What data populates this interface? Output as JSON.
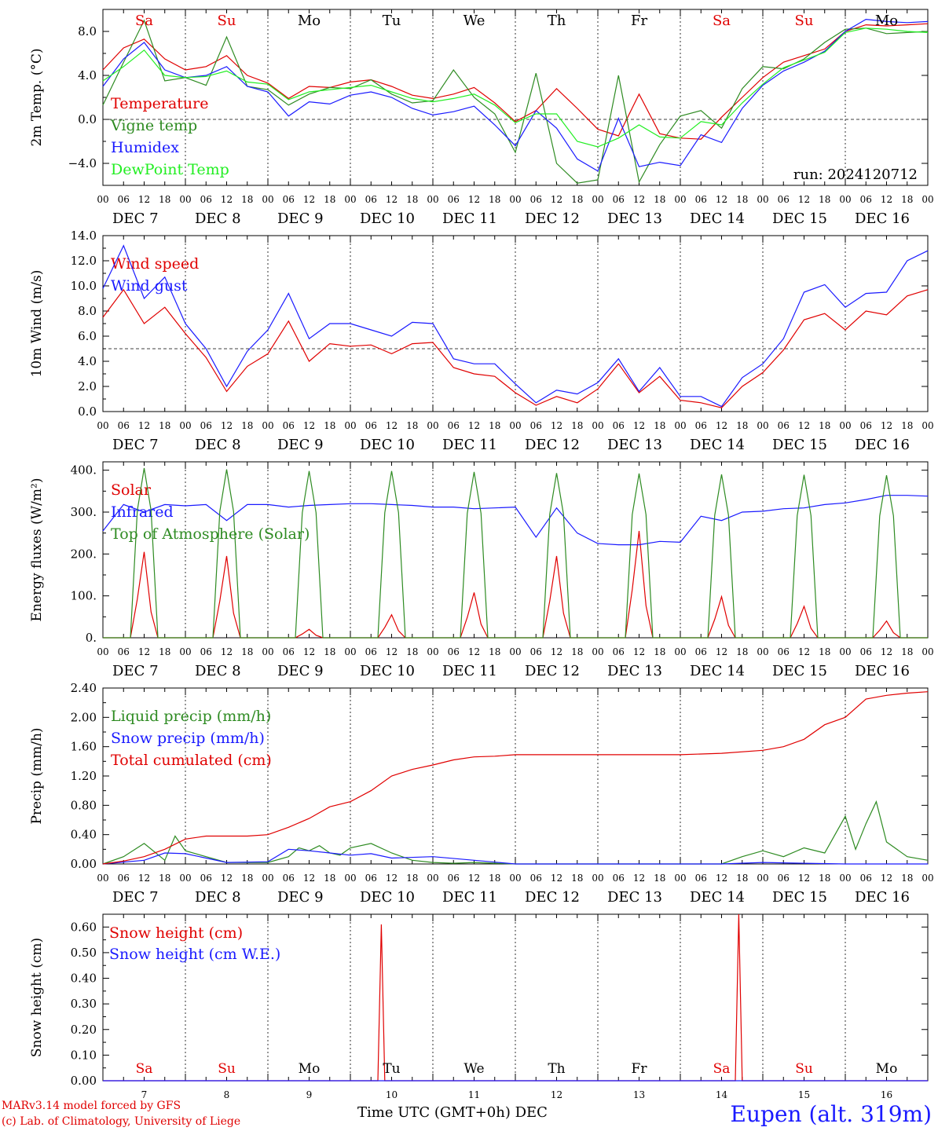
{
  "station_label": "Eupen (alt. 319m)",
  "x_axis_title": "Time UTC (GMT+0h) DEC",
  "credits": [
    "MARv3.14 model forced by GFS",
    "(c) Lab. of Climatology, University of Liege"
  ],
  "run_label": "run: 2024120712",
  "weekdays": [
    {
      "label": "Sa",
      "color": "#e00000"
    },
    {
      "label": "Su",
      "color": "#e00000"
    },
    {
      "label": "Mo",
      "color": "#000000"
    },
    {
      "label": "Tu",
      "color": "#000000"
    },
    {
      "label": "We",
      "color": "#000000"
    },
    {
      "label": "Th",
      "color": "#000000"
    },
    {
      "label": "Fr",
      "color": "#000000"
    },
    {
      "label": "Sa",
      "color": "#e00000"
    },
    {
      "label": "Su",
      "color": "#e00000"
    },
    {
      "label": "Mo",
      "color": "#000000"
    }
  ],
  "date_labels": [
    "DEC  7",
    "DEC  8",
    "DEC  9",
    "DEC 10",
    "DEC 11",
    "DEC 12",
    "DEC 13",
    "DEC 14",
    "DEC 15",
    "DEC 16"
  ],
  "bottom_day_numbers": [
    "7",
    "8",
    "9",
    "10",
    "11",
    "12",
    "13",
    "14",
    "15",
    "16"
  ],
  "hour_labels": [
    "00",
    "06",
    "12",
    "18"
  ],
  "hour_label_end": "00",
  "chart_data": [
    {
      "type": "line",
      "ylabel": "2m Temp. (°C)",
      "ylim": [
        -6,
        10
      ],
      "ticks": [
        -4,
        0,
        4,
        8
      ],
      "tick_labels": [
        "−4.0",
        "0.0",
        "4.0",
        "8.0"
      ],
      "ref_line": 0,
      "x_unit": "hours since Dec 7 00 UTC",
      "series": [
        {
          "name": "Temperature",
          "color": "#e00000",
          "x": [
            0,
            6,
            12,
            18,
            24,
            30,
            36,
            42,
            48,
            54,
            60,
            66,
            72,
            78,
            84,
            90,
            96,
            102,
            108,
            114,
            120,
            126,
            132,
            138,
            144,
            150,
            156,
            162,
            168,
            174,
            180,
            186,
            192,
            198,
            204,
            210,
            216,
            222,
            228,
            234,
            240
          ],
          "y": [
            4.5,
            6.5,
            7.3,
            5.5,
            4.5,
            4.8,
            5.8,
            4.0,
            3.3,
            1.9,
            3.0,
            2.9,
            3.4,
            3.6,
            3.0,
            2.2,
            1.9,
            2.3,
            2.9,
            1.5,
            -0.2,
            0.8,
            2.8,
            1.0,
            -0.9,
            -1.5,
            2.3,
            -1.3,
            -1.7,
            -1.8,
            0.2,
            2.0,
            3.8,
            5.2,
            5.8,
            6.4,
            8.0,
            8.6,
            8.5,
            8.6,
            8.7
          ]
        },
        {
          "name": "Vigne temp",
          "color": "#2e8b22",
          "x": [
            0,
            6,
            12,
            18,
            24,
            30,
            36,
            42,
            48,
            54,
            60,
            66,
            72,
            78,
            84,
            90,
            96,
            102,
            108,
            114,
            120,
            126,
            132,
            138,
            144,
            150,
            156,
            162,
            168,
            174,
            180,
            186,
            192,
            198,
            204,
            210,
            216,
            222,
            228,
            234,
            240
          ],
          "y": [
            1.3,
            5.2,
            9.0,
            3.5,
            3.8,
            3.1,
            7.5,
            3.0,
            2.7,
            1.3,
            2.3,
            2.9,
            2.8,
            3.6,
            2.3,
            1.5,
            1.7,
            4.5,
            2.0,
            0.5,
            -3.0,
            4.2,
            -4.0,
            -5.8,
            -5.5,
            4.0,
            -5.7,
            -2.3,
            0.3,
            0.8,
            -0.8,
            2.8,
            4.8,
            4.6,
            5.5,
            7.0,
            8.2,
            8.3,
            7.8,
            7.9,
            8.0
          ]
        },
        {
          "name": "Humidex",
          "color": "#1a1aff",
          "x": [
            0,
            6,
            12,
            18,
            24,
            30,
            36,
            42,
            48,
            54,
            60,
            66,
            72,
            78,
            84,
            90,
            96,
            102,
            108,
            114,
            120,
            126,
            132,
            138,
            144,
            150,
            156,
            162,
            168,
            174,
            180,
            186,
            192,
            198,
            204,
            210,
            216,
            222,
            228,
            234,
            240
          ],
          "y": [
            3.0,
            5.5,
            7.0,
            4.5,
            3.8,
            4.0,
            4.8,
            3.0,
            2.5,
            0.3,
            1.6,
            1.4,
            2.2,
            2.5,
            2.0,
            1.0,
            0.4,
            0.7,
            1.2,
            -0.5,
            -2.4,
            0.8,
            -0.8,
            -3.6,
            -4.7,
            0.1,
            -4.3,
            -3.9,
            -4.2,
            -1.4,
            -2.1,
            1.0,
            3.1,
            4.4,
            5.2,
            6.2,
            8.0,
            9.1,
            8.9,
            8.8,
            8.9
          ]
        },
        {
          "name": "DewPoint Temp",
          "color": "#22ee22",
          "x": [
            0,
            6,
            12,
            18,
            24,
            30,
            36,
            42,
            48,
            54,
            60,
            66,
            72,
            78,
            84,
            90,
            96,
            102,
            108,
            114,
            120,
            126,
            132,
            138,
            144,
            150,
            156,
            162,
            168,
            174,
            180,
            186,
            192,
            198,
            204,
            210,
            216,
            222,
            228,
            234,
            240
          ],
          "y": [
            3.5,
            4.8,
            6.3,
            4.0,
            3.8,
            3.9,
            4.4,
            3.4,
            3.2,
            1.8,
            2.5,
            2.7,
            2.9,
            3.1,
            2.5,
            1.9,
            1.6,
            1.9,
            2.3,
            1.3,
            -0.3,
            0.5,
            0.5,
            -2.0,
            -2.5,
            -1.7,
            -0.5,
            -1.6,
            -1.7,
            -0.2,
            -0.5,
            1.5,
            3.2,
            4.7,
            5.4,
            6.1,
            7.9,
            8.3,
            8.2,
            8.0,
            7.9
          ]
        }
      ]
    },
    {
      "type": "line",
      "ylabel": "10m Wind (m/s)",
      "ylim": [
        0,
        14
      ],
      "ticks": [
        0,
        2,
        4,
        6,
        8,
        10,
        12,
        14
      ],
      "tick_labels": [
        "0.0",
        "2.0",
        "4.0",
        "6.0",
        "8.0",
        "10.0",
        "12.0",
        "14.0"
      ],
      "ref_line": 5,
      "x_unit": "hours since Dec 7 00 UTC",
      "series": [
        {
          "name": "Wind speed",
          "color": "#e00000",
          "x": [
            0,
            6,
            12,
            18,
            24,
            30,
            36,
            42,
            48,
            54,
            60,
            66,
            72,
            78,
            84,
            90,
            96,
            102,
            108,
            114,
            120,
            126,
            132,
            138,
            144,
            150,
            156,
            162,
            168,
            174,
            180,
            186,
            192,
            198,
            204,
            210,
            216,
            222,
            228,
            234,
            240
          ],
          "y": [
            7.5,
            9.7,
            7.0,
            8.3,
            6.2,
            4.3,
            1.6,
            3.6,
            4.6,
            7.2,
            4.0,
            5.4,
            5.2,
            5.3,
            4.6,
            5.4,
            5.5,
            3.5,
            3.0,
            2.8,
            1.5,
            0.5,
            1.2,
            0.7,
            1.8,
            3.8,
            1.5,
            2.8,
            0.9,
            0.7,
            0.3,
            2.0,
            3.1,
            4.9,
            7.3,
            7.8,
            6.5,
            8.0,
            7.7,
            9.2,
            9.7
          ]
        },
        {
          "name": "Wind gust",
          "color": "#1a1aff",
          "x": [
            0,
            6,
            12,
            18,
            24,
            30,
            36,
            42,
            48,
            54,
            60,
            66,
            72,
            78,
            84,
            90,
            96,
            102,
            108,
            114,
            120,
            126,
            132,
            138,
            144,
            150,
            156,
            162,
            168,
            174,
            180,
            186,
            192,
            198,
            204,
            210,
            216,
            222,
            228,
            234,
            240
          ],
          "y": [
            9.8,
            13.2,
            9.0,
            10.7,
            7.0,
            5.0,
            2.0,
            4.8,
            6.5,
            9.4,
            5.8,
            7.0,
            7.0,
            6.5,
            6.0,
            7.1,
            7.0,
            4.2,
            3.8,
            3.8,
            2.2,
            0.7,
            1.7,
            1.4,
            2.3,
            4.2,
            1.6,
            3.5,
            1.2,
            1.2,
            0.4,
            2.7,
            3.8,
            5.8,
            9.5,
            10.1,
            8.3,
            9.4,
            9.5,
            12.0,
            12.8
          ]
        }
      ]
    },
    {
      "type": "line",
      "ylabel": "Energy fluxes (W/m²)",
      "ylim": [
        0,
        420
      ],
      "ticks": [
        0,
        100,
        200,
        300,
        400
      ],
      "tick_labels": [
        "0.",
        "100.",
        "200.",
        "300.",
        "400."
      ],
      "x_unit": "hours since Dec 7 00 UTC",
      "daily_solar_peaks": [
        205,
        195,
        20,
        55,
        108,
        195,
        255,
        98,
        75,
        40
      ],
      "daily_toa_peaks": [
        405,
        402,
        398,
        398,
        396,
        393,
        392,
        390,
        389,
        388
      ],
      "series": [
        {
          "name": "Solar",
          "color": "#e00000"
        },
        {
          "name": "Infrared",
          "color": "#1a1aff",
          "x": [
            0,
            6,
            12,
            18,
            24,
            30,
            36,
            42,
            48,
            54,
            60,
            66,
            72,
            78,
            84,
            90,
            96,
            102,
            108,
            114,
            120,
            126,
            132,
            138,
            144,
            150,
            156,
            162,
            168,
            174,
            180,
            186,
            192,
            198,
            204,
            210,
            216,
            222,
            228,
            234,
            240
          ],
          "y": [
            255,
            318,
            300,
            318,
            315,
            318,
            280,
            318,
            318,
            312,
            316,
            318,
            320,
            320,
            318,
            316,
            312,
            312,
            308,
            310,
            312,
            240,
            310,
            250,
            225,
            222,
            222,
            230,
            228,
            290,
            280,
            300,
            302,
            308,
            310,
            318,
            322,
            330,
            340,
            340,
            338
          ]
        },
        {
          "name": "Top of Atmosphere (Solar)",
          "color": "#2e8b22"
        }
      ]
    },
    {
      "type": "line",
      "ylabel": "Precip (mm/h)",
      "ylim": [
        0,
        2.4
      ],
      "ticks": [
        0,
        0.4,
        0.8,
        1.2,
        1.6,
        2.0,
        2.4
      ],
      "tick_labels": [
        "0.00",
        "0.40",
        "0.80",
        "1.20",
        "1.60",
        "2.00",
        "2.40"
      ],
      "x_unit": "hours since Dec 7 00 UTC",
      "series": [
        {
          "name": "Liquid precip (mm/h)",
          "color": "#2e8b22",
          "x": [
            0,
            6,
            12,
            18,
            21,
            24,
            30,
            36,
            48,
            54,
            57,
            60,
            63,
            66,
            69,
            72,
            78,
            84,
            90,
            96,
            102,
            108,
            114,
            120,
            180,
            186,
            192,
            198,
            204,
            210,
            216,
            219,
            222,
            225,
            228,
            234,
            240
          ],
          "y": [
            0,
            0.1,
            0.28,
            0.05,
            0.38,
            0.18,
            0.1,
            0.02,
            0.02,
            0.1,
            0.22,
            0.18,
            0.25,
            0.15,
            0.12,
            0.22,
            0.28,
            0.15,
            0.05,
            0.02,
            0.01,
            0.02,
            0.01,
            0,
            0,
            0.1,
            0.18,
            0.1,
            0.22,
            0.15,
            0.65,
            0.2,
            0.55,
            0.85,
            0.3,
            0.1,
            0.05
          ]
        },
        {
          "name": "Snow precip (mm/h)",
          "color": "#1a1aff",
          "x": [
            0,
            12,
            18,
            24,
            30,
            36,
            48,
            54,
            60,
            66,
            72,
            78,
            84,
            96,
            108,
            120,
            180,
            192,
            204,
            216,
            240
          ],
          "y": [
            0,
            0.05,
            0.15,
            0.14,
            0.08,
            0.02,
            0.03,
            0.2,
            0.18,
            0.15,
            0.12,
            0.14,
            0.08,
            0.1,
            0.05,
            0,
            0,
            0.02,
            0.01,
            0,
            0
          ]
        },
        {
          "name": "Total cumulated (cm)",
          "color": "#e00000",
          "x": [
            0,
            6,
            12,
            18,
            24,
            30,
            36,
            42,
            48,
            54,
            60,
            66,
            72,
            78,
            84,
            90,
            96,
            102,
            108,
            114,
            120,
            126,
            132,
            168,
            180,
            192,
            198,
            204,
            210,
            216,
            222,
            228,
            234,
            240
          ],
          "y": [
            0,
            0.04,
            0.1,
            0.2,
            0.34,
            0.38,
            0.38,
            0.38,
            0.4,
            0.5,
            0.62,
            0.78,
            0.85,
            1.0,
            1.2,
            1.29,
            1.35,
            1.42,
            1.46,
            1.47,
            1.49,
            1.49,
            1.49,
            1.49,
            1.51,
            1.55,
            1.6,
            1.7,
            1.9,
            2.0,
            2.25,
            2.3,
            2.33,
            2.35
          ]
        }
      ]
    },
    {
      "type": "line",
      "ylabel": "Snow height (cm)",
      "ylim": [
        0,
        0.65
      ],
      "ticks": [
        0,
        0.1,
        0.2,
        0.3,
        0.4,
        0.5,
        0.6
      ],
      "tick_labels": [
        "0.00",
        "0.10",
        "0.20",
        "0.30",
        "0.40",
        "0.50",
        "0.60"
      ],
      "x_unit": "hours since Dec 7 00 UTC",
      "series": [
        {
          "name": "Snow height (cm)",
          "color": "#e00000",
          "x": [
            0,
            80,
            81,
            82,
            83,
            184,
            185,
            186,
            187,
            240
          ],
          "y": [
            0,
            0,
            0.61,
            0,
            0,
            0,
            0.65,
            0,
            0,
            0
          ]
        },
        {
          "name": "Snow height (cm W.E.)",
          "color": "#1a1aff",
          "x": [
            0,
            240
          ],
          "y": [
            0,
            0
          ]
        }
      ]
    }
  ]
}
